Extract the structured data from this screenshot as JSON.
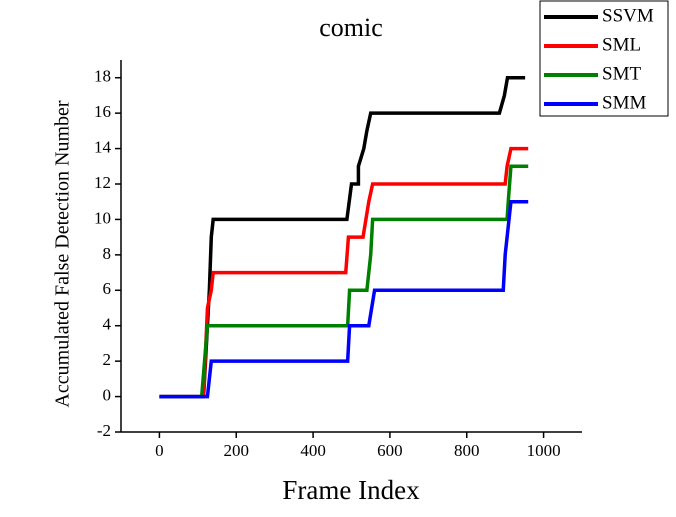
{
  "chart_data": {
    "type": "line",
    "title": "comic",
    "x_label": "Frame Index",
    "y_label": "Accumulated False Detection Number",
    "xlim": [
      -100,
      1100
    ],
    "xticks": [
      0,
      200,
      400,
      600,
      800,
      1000
    ],
    "ylim": [
      -2,
      19
    ],
    "yticks": [
      -2,
      0,
      2,
      4,
      6,
      8,
      10,
      12,
      14,
      16,
      18
    ],
    "legend": "top-right",
    "series": [
      {
        "name": "SSVM",
        "color": "#000000",
        "x": [
          0,
          115,
          125,
          130,
          135,
          140,
          488,
          500,
          518,
          518,
          532,
          540,
          550,
          885,
          898,
          906,
          952
        ],
        "values": [
          0,
          0,
          4,
          6,
          9,
          10,
          10,
          12,
          12,
          13,
          14,
          15,
          16,
          16,
          17,
          18,
          18
        ]
      },
      {
        "name": "SML",
        "color": "#ff0000",
        "x": [
          0,
          115,
          125,
          135,
          140,
          485,
          492,
          530,
          545,
          555,
          900,
          905,
          915,
          960
        ],
        "values": [
          0,
          0,
          5,
          6,
          7,
          7,
          9,
          9,
          11,
          12,
          12,
          13,
          14,
          14
        ]
      },
      {
        "name": "SMT",
        "color": "#008000",
        "x": [
          0,
          110,
          125,
          490,
          495,
          540,
          550,
          555,
          905,
          908,
          915,
          960
        ],
        "values": [
          0,
          0,
          4,
          4,
          6,
          6,
          8,
          10,
          10,
          11,
          13,
          13
        ]
      },
      {
        "name": "SMM",
        "color": "#0000ff",
        "x": [
          0,
          125,
          135,
          490,
          495,
          545,
          560,
          895,
          900,
          915,
          960
        ],
        "values": [
          0,
          0,
          2,
          2,
          4,
          4,
          6,
          6,
          8,
          11,
          11
        ]
      }
    ]
  }
}
